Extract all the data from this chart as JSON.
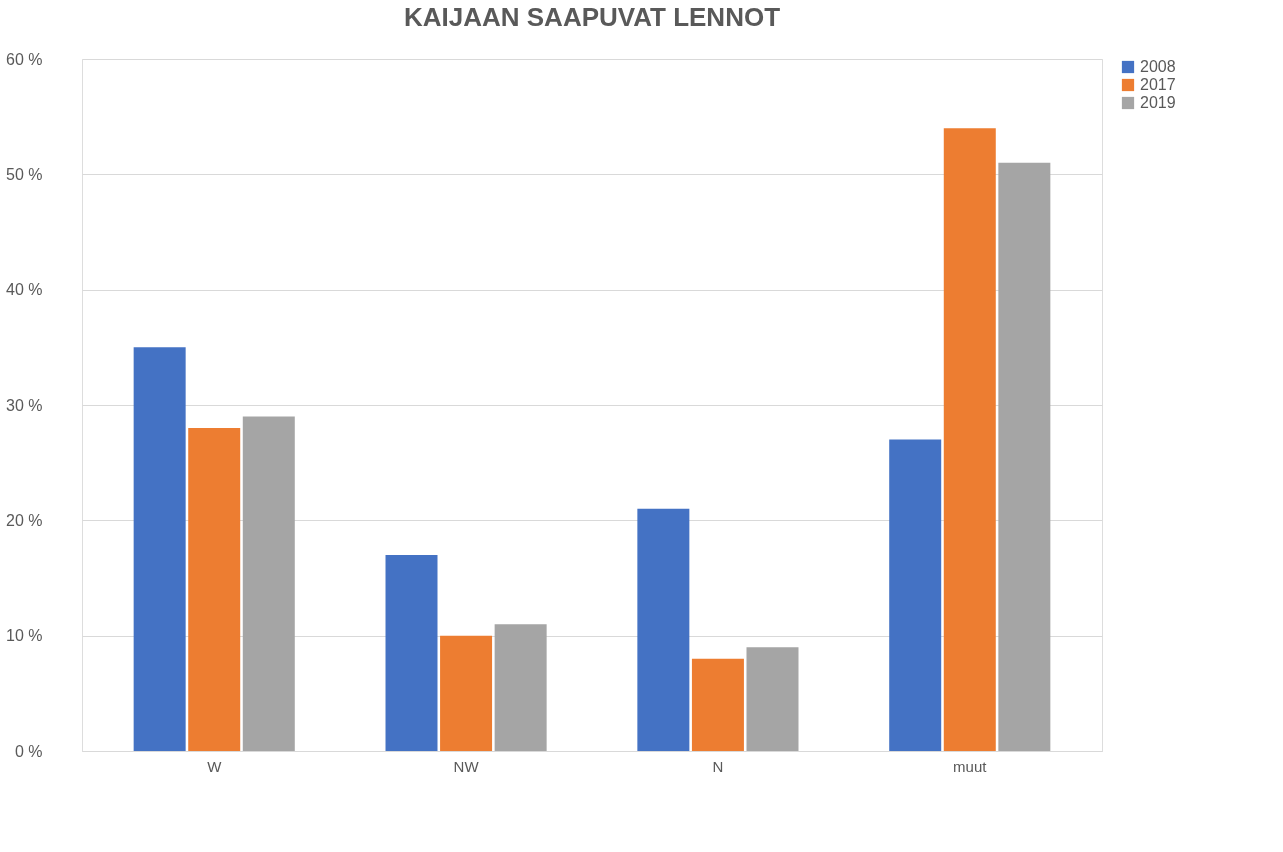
{
  "chart_data": {
    "type": "bar",
    "title": "KAIJAAN SAAPUVAT LENNOT",
    "categories": [
      "W",
      "NW",
      "N",
      "muut"
    ],
    "series": [
      {
        "name": "2008",
        "color": "#4472c4",
        "values": [
          35,
          17,
          21,
          27
        ]
      },
      {
        "name": "2017",
        "color": "#ed7d31",
        "values": [
          28,
          10,
          8,
          54
        ]
      },
      {
        "name": "2019",
        "color": "#a5a5a5",
        "values": [
          29,
          11,
          9,
          51
        ]
      }
    ],
    "ylim": [
      0,
      60
    ],
    "yticks": [
      {
        "value": 0,
        "label": "0 %"
      },
      {
        "value": 10,
        "label": "10 %"
      },
      {
        "value": 20,
        "label": "20 %"
      },
      {
        "value": 30,
        "label": "30 %"
      },
      {
        "value": 40,
        "label": "40 %"
      },
      {
        "value": 50,
        "label": "50 %"
      },
      {
        "value": 60,
        "label": "60 %"
      }
    ],
    "grid": "y",
    "legend": "right"
  }
}
